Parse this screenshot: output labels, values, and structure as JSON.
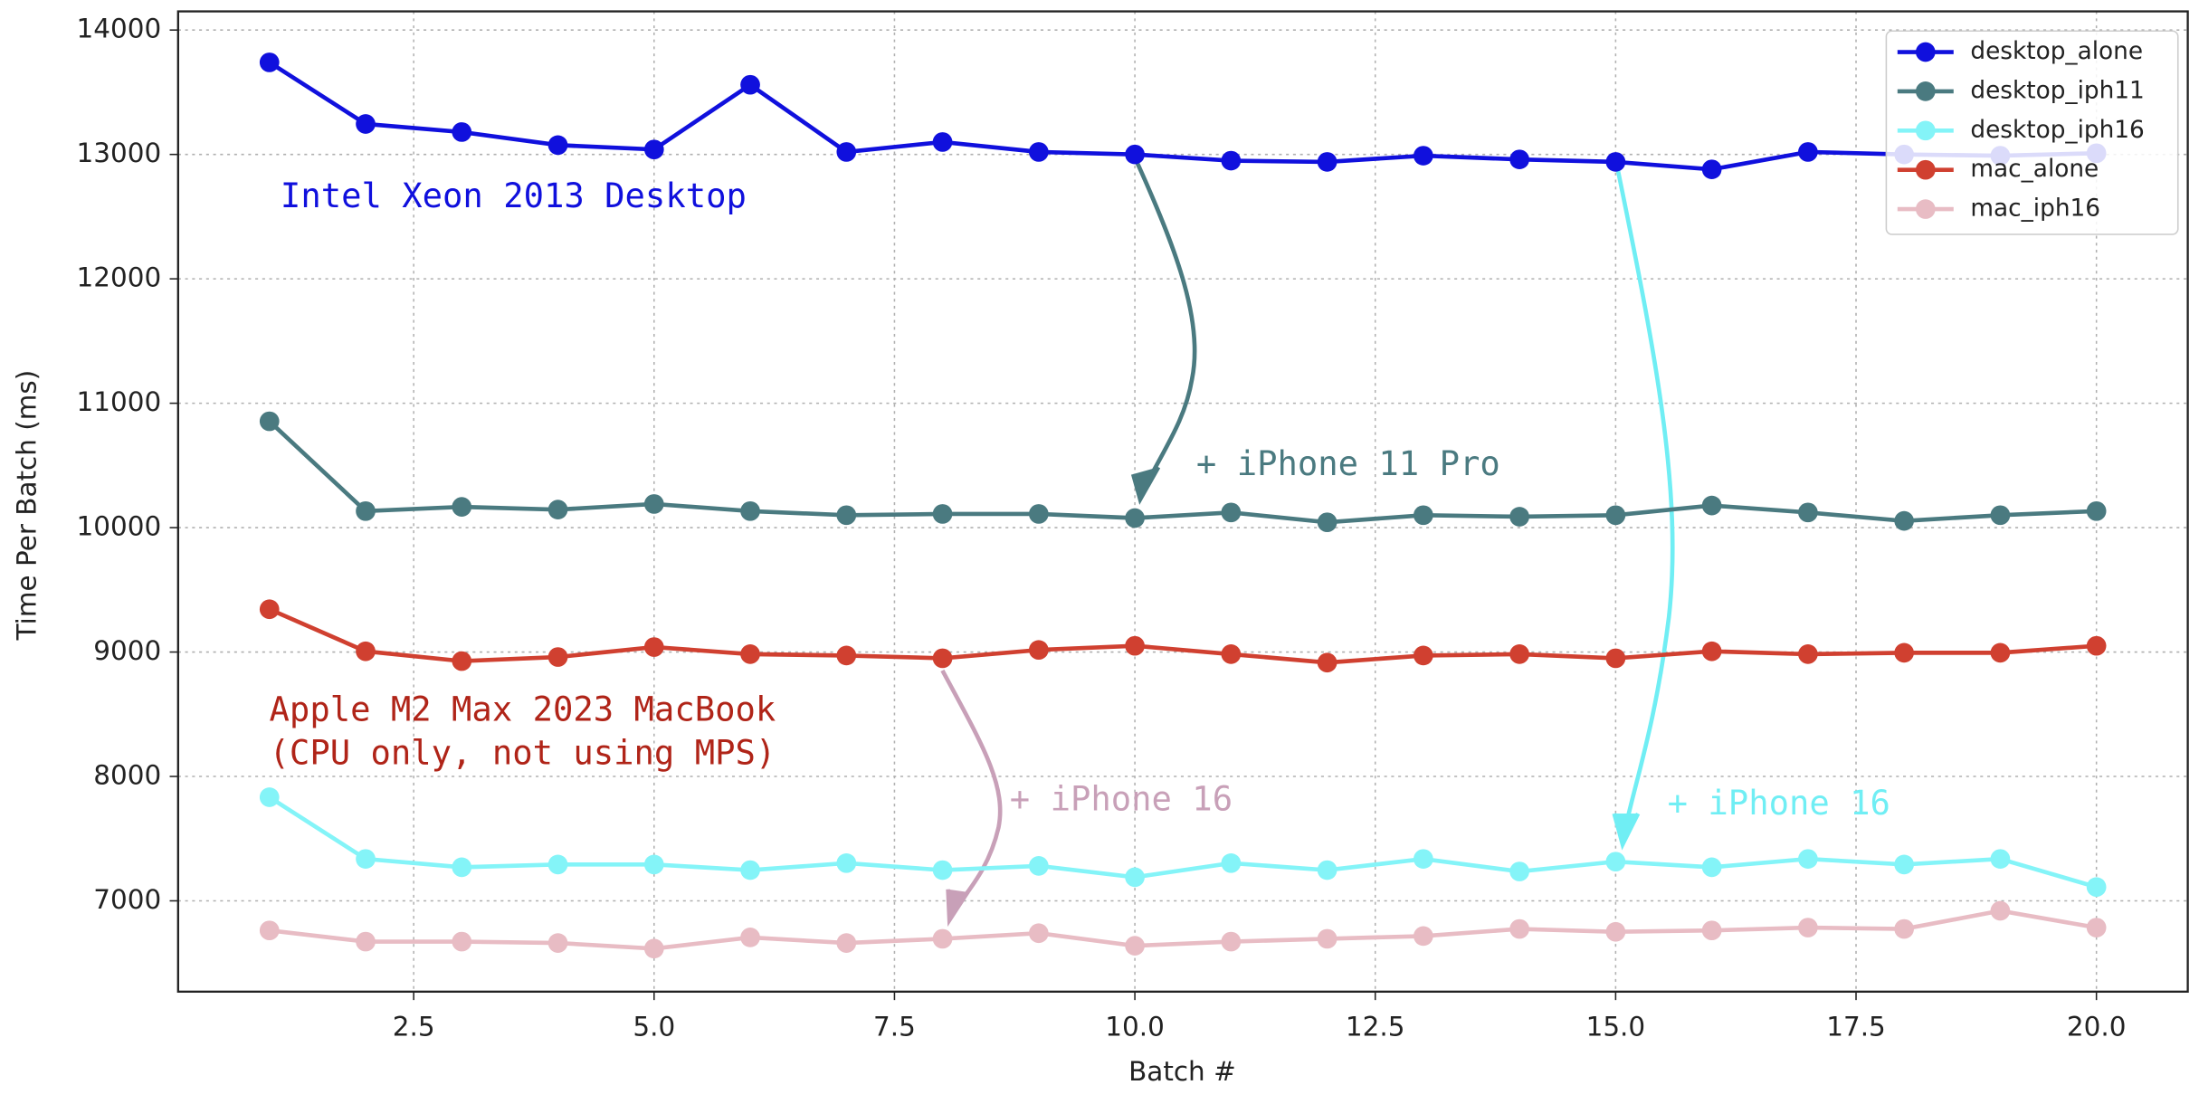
{
  "chart_data": {
    "type": "line",
    "xlabel": "Batch #",
    "ylabel": "Time Per Batch (ms)",
    "x": [
      1,
      2,
      3,
      4,
      5,
      6,
      7,
      8,
      9,
      10,
      11,
      12,
      13,
      14,
      15,
      16,
      17,
      18,
      19,
      20
    ],
    "series": [
      {
        "name": "desktop_alone",
        "color": "#1010dd",
        "values": [
          13740,
          13245,
          13180,
          13075,
          13040,
          13560,
          13020,
          13100,
          13020,
          13000,
          12950,
          12940,
          12990,
          12960,
          12940,
          12880,
          13020,
          13000,
          12990,
          13010
        ]
      },
      {
        "name": "desktop_iph11",
        "color": "#4a7a80",
        "values": [
          10855,
          10133,
          10167,
          10145,
          10190,
          10133,
          10100,
          10110,
          10110,
          10077,
          10122,
          10043,
          10100,
          10088,
          10100,
          10178,
          10122,
          10054,
          10100,
          10133
        ]
      },
      {
        "name": "desktop_iph16",
        "color": "#84f4f8",
        "values": [
          7833,
          7337,
          7270,
          7292,
          7292,
          7247,
          7303,
          7247,
          7281,
          7190,
          7303,
          7247,
          7337,
          7236,
          7315,
          7270,
          7337,
          7292,
          7337,
          7111
        ]
      },
      {
        "name": "mac_alone",
        "color": "#d04030",
        "values": [
          9344,
          9006,
          8927,
          8960,
          9040,
          8983,
          8972,
          8950,
          9017,
          9050,
          8983,
          8915,
          8972,
          8983,
          8950,
          9006,
          8983,
          8994,
          8994,
          9050
        ]
      },
      {
        "name": "mac_iph16",
        "color": "#e8bcc4",
        "values": [
          6762,
          6672,
          6672,
          6661,
          6616,
          6706,
          6661,
          6695,
          6740,
          6639,
          6672,
          6695,
          6717,
          6774,
          6751,
          6762,
          6785,
          6774,
          6920,
          6785
        ]
      }
    ],
    "xlim": [
      0.05,
      20.95
    ],
    "xticks": [
      2.5,
      {
        "value": 5,
        "label": "5.0"
      },
      7.5,
      {
        "value": 10,
        "label": "10.0"
      },
      12.5,
      {
        "value": 15,
        "label": "15.0"
      },
      17.5,
      {
        "value": 20,
        "label": "20.0"
      }
    ],
    "ylim": [
      6270,
      14150
    ],
    "yticks": [
      7000,
      8000,
      9000,
      10000,
      11000,
      12000,
      13000,
      14000
    ],
    "grid": true,
    "legend": "upper right",
    "annotations": [
      {
        "text": "Intel Xeon 2013 Desktop",
        "color": "#1010dd"
      },
      {
        "text": "+ iPhone 11 Pro",
        "color": "#4a7a80"
      },
      {
        "text": "Apple M2 Max 2023 MacBook",
        "color": "#b02418"
      },
      {
        "text": "(CPU only, not using MPS)",
        "color": "#b02418"
      },
      {
        "text": "+ iPhone 16",
        "color": "#c8a0b8"
      },
      {
        "text": "+ iPhone 16",
        "color": "#70eef4"
      }
    ]
  }
}
